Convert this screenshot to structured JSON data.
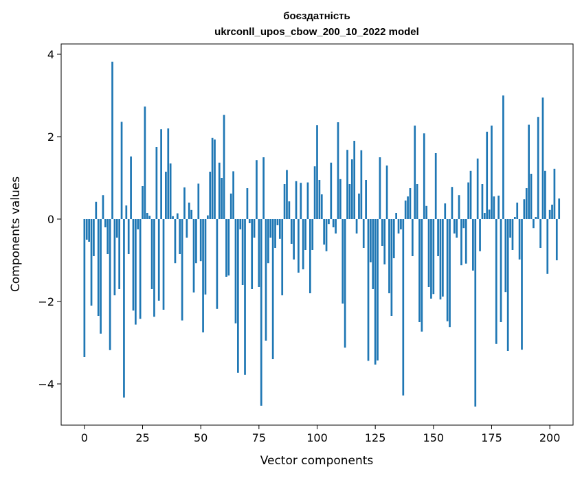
{
  "chart_data": {
    "type": "bar",
    "title_line1": "боєздатність",
    "title_line2": "ukrconll_upos_cbow_200_10_2022 model",
    "xlabel": "Vector components",
    "ylabel": "Components values",
    "xlim": [
      -10,
      210
    ],
    "ylim": [
      -5,
      4.25
    ],
    "xticks": [
      0,
      25,
      50,
      75,
      100,
      125,
      150,
      175,
      200
    ],
    "yticks": [
      -4,
      -2,
      0,
      2,
      4
    ],
    "xtick_labels": [
      "0",
      "25",
      "50",
      "75",
      "100",
      "125",
      "150",
      "175",
      "200"
    ],
    "ytick_labels": [
      "−4",
      "−2",
      "0",
      "2",
      "4"
    ],
    "bar_color": "#1f77b4",
    "values": [
      -3.35,
      -0.5,
      -0.55,
      -2.1,
      -0.9,
      0.42,
      -2.35,
      -2.78,
      0.58,
      -0.2,
      -0.85,
      -3.18,
      3.82,
      -1.85,
      -0.45,
      -1.7,
      2.36,
      -4.33,
      0.33,
      -0.85,
      1.52,
      -2.22,
      -2.56,
      -0.25,
      -2.42,
      0.8,
      2.73,
      0.15,
      0.08,
      -1.7,
      -2.37,
      1.75,
      -1.98,
      2.18,
      -2.2,
      1.15,
      2.2,
      1.35,
      0.07,
      -1.07,
      0.14,
      -0.85,
      -2.46,
      0.77,
      -0.45,
      0.4,
      0.22,
      -1.78,
      -1.07,
      0.86,
      -1.02,
      -2.75,
      -1.83,
      0.09,
      1.15,
      1.97,
      1.93,
      -2.18,
      1.37,
      1.0,
      2.53,
      -1.4,
      -1.37,
      0.62,
      1.16,
      -2.53,
      -3.73,
      -0.25,
      -1.6,
      -3.78,
      0.75,
      -0.1,
      -1.7,
      -0.45,
      1.43,
      -1.65,
      -4.53,
      1.5,
      -2.95,
      -1.07,
      -0.45,
      -3.4,
      -0.7,
      -0.15,
      -0.48,
      -1.85,
      0.85,
      1.19,
      0.43,
      -0.6,
      -0.98,
      0.92,
      -1.3,
      0.88,
      -1.22,
      -0.75,
      0.89,
      -1.8,
      -0.75,
      1.28,
      2.28,
      0.95,
      0.6,
      -0.62,
      -0.78,
      -0.12,
      1.37,
      -0.2,
      -0.35,
      2.35,
      0.97,
      -2.05,
      -3.12,
      1.68,
      0.85,
      1.45,
      1.9,
      -0.35,
      0.62,
      1.67,
      -0.7,
      0.95,
      -3.44,
      -1.05,
      -1.7,
      -3.53,
      -3.43,
      1.5,
      -0.65,
      -1.1,
      1.3,
      -1.8,
      -2.35,
      -0.95,
      0.15,
      -0.35,
      -0.25,
      -4.28,
      0.45,
      0.55,
      0.75,
      -0.9,
      2.27,
      0.85,
      -2.5,
      -2.73,
      2.08,
      0.32,
      -1.65,
      -1.93,
      -1.82,
      1.6,
      -0.9,
      -1.95,
      -1.88,
      0.38,
      -2.48,
      -2.62,
      0.78,
      -0.35,
      -0.45,
      0.58,
      -1.12,
      -0.22,
      -1.08,
      0.89,
      1.17,
      -1.25,
      -4.55,
      1.47,
      -0.78,
      0.85,
      0.15,
      2.12,
      0.23,
      2.27,
      0.55,
      -3.03,
      0.57,
      -2.5,
      3.0,
      -1.77,
      -3.2,
      -0.45,
      -0.75,
      0.05,
      0.4,
      -0.98,
      -3.17,
      0.48,
      0.75,
      2.29,
      1.1,
      -0.22,
      0.05,
      2.48,
      -0.7,
      2.95,
      1.17,
      -1.33,
      0.22,
      0.35,
      1.22,
      -1.0,
      0.5
    ]
  }
}
